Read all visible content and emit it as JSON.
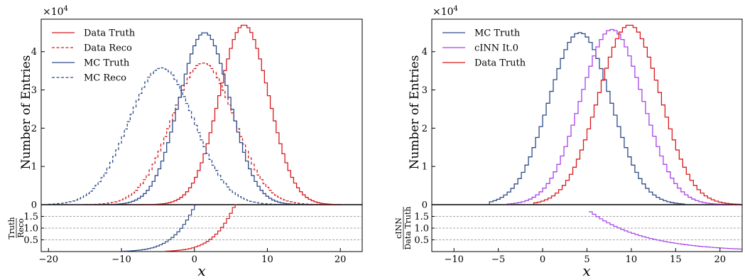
{
  "figure": {
    "panels": [
      {
        "id": "left",
        "ylabel": "Number of Entries",
        "xlabel": "x",
        "multiplier": "×10",
        "multiplier_exp": "4",
        "ratio_label_num": "Truth",
        "ratio_label_den": "Reco"
      },
      {
        "id": "right",
        "ylabel": "Number of Entries",
        "xlabel": "x",
        "multiplier": "×10",
        "multiplier_exp": "4",
        "ratio_label_num": "cINN",
        "ratio_label_den": "Data Truth"
      }
    ]
  },
  "chart_data": [
    {
      "type": "line",
      "style": "step histogram",
      "xlabel": "x",
      "ylabel": "Number of Entries",
      "y_multiplier": "×10^4",
      "xlim": [
        -21,
        23
      ],
      "ylim": [
        0,
        48500
      ],
      "xticks": [
        -20,
        -10,
        0,
        10,
        20
      ],
      "xtick_labels": [
        "−20",
        "−10",
        "0",
        "10",
        "20"
      ],
      "yticks": [
        0,
        10000,
        20000,
        30000,
        40000
      ],
      "ytick_labels": [
        "0",
        "1",
        "2",
        "3",
        "4"
      ],
      "legend": "top-left",
      "gaussians": [
        {
          "name": "Data Truth",
          "color": "#d7191c",
          "dash": "solid",
          "mean": 6.8,
          "sigma": 3.4,
          "peak": 47000,
          "range": [
            -10,
            20
          ]
        },
        {
          "name": "Data Reco",
          "color": "#d7191c",
          "dash": "dashed",
          "mean": 1.2,
          "sigma": 4.3,
          "peak": 37000,
          "range": [
            -15,
            20
          ]
        },
        {
          "name": "MC Truth",
          "color": "#2c4a87",
          "dash": "solid",
          "mean": 1.4,
          "sigma": 3.5,
          "peak": 45000,
          "range": [
            -15,
            17
          ]
        },
        {
          "name": "MC Reco",
          "color": "#2c4a87",
          "dash": "dashed",
          "mean": -4.5,
          "sigma": 4.5,
          "peak": 35800,
          "range": [
            -20,
            12
          ]
        }
      ],
      "ratio_panel": {
        "ylabel": "Truth / Reco",
        "ylim": [
          0,
          2.0
        ],
        "yticks": [
          0.5,
          1.0,
          1.5
        ],
        "ytick_labels": [
          "0.5",
          "1.0",
          "1.5"
        ],
        "reference_lines": [
          0.5,
          1.0,
          1.5
        ],
        "series": [
          {
            "name": "MC Truth / MC Reco",
            "color": "#2c4a87",
            "range": [
              -10,
              0.2
            ]
          },
          {
            "name": "Data Truth / Data Reco",
            "color": "#d7191c",
            "range": [
              -4,
              5.8
            ]
          }
        ]
      }
    },
    {
      "type": "line",
      "style": "step histogram",
      "xlabel": "x",
      "ylabel": "Number of Entries",
      "y_multiplier": "×10^4",
      "xlim": [
        -12.5,
        22.5
      ],
      "ylim": [
        0,
        48500
      ],
      "xticks": [
        -10,
        -5,
        0,
        5,
        10,
        15,
        20
      ],
      "xtick_labels": [
        "−10",
        "−5",
        "0",
        "5",
        "10",
        "15",
        "20"
      ],
      "yticks": [
        0,
        10000,
        20000,
        30000,
        40000
      ],
      "ytick_labels": [
        "0",
        "1",
        "2",
        "3",
        "4"
      ],
      "legend": "top-left",
      "gaussians": [
        {
          "name": "MC Truth",
          "color": "#2c4a87",
          "dash": "solid",
          "mean": 4.2,
          "sigma": 3.5,
          "peak": 45000,
          "range": [
            -6,
            16
          ]
        },
        {
          "name": "cINN It.0",
          "color": "#a642e8",
          "dash": "solid",
          "mean": 7.8,
          "sigma": 3.5,
          "peak": 45800,
          "range": [
            -4,
            22.5
          ]
        },
        {
          "name": "Data Truth",
          "color": "#d7191c",
          "dash": "solid",
          "mean": 9.8,
          "sigma": 3.5,
          "peak": 47000,
          "range": [
            -1,
            22.5
          ]
        }
      ],
      "ratio_panel": {
        "ylabel": "cINN / Data Truth",
        "ylim": [
          0,
          2.0
        ],
        "yticks": [
          0.5,
          1.0,
          1.5
        ],
        "ytick_labels": [
          "0.5",
          "1.0",
          "1.5"
        ],
        "reference_lines": [
          0.5,
          1.0,
          1.5
        ],
        "series": [
          {
            "name": "cINN It.0 / Data Truth",
            "color": "#a642e8",
            "range": [
              5.2,
              22.5
            ]
          }
        ]
      }
    }
  ]
}
